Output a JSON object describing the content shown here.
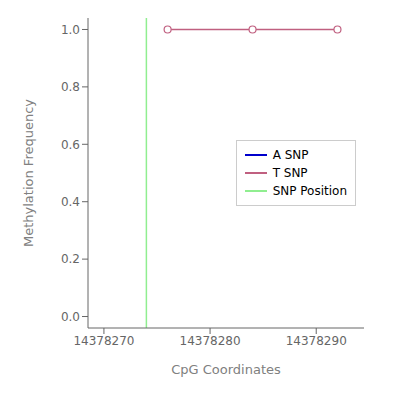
{
  "chart_data": {
    "type": "line",
    "xlabel": "CpG Coordinates",
    "ylabel": "Methylation Frequency",
    "xlim": [
      14378268.5,
      14378294.5
    ],
    "ylim": [
      -0.04,
      1.04
    ],
    "xticks": [
      14378270,
      14378280,
      14378290
    ],
    "yticks": [
      {
        "value": 0.0,
        "label": "0.0"
      },
      0.2,
      0.4,
      0.6,
      0.8,
      {
        "value": 1.0,
        "label": "1.0"
      }
    ],
    "grid": false,
    "legend": "right",
    "series": [
      {
        "name": "A SNP",
        "color": "#0000cc",
        "x": [],
        "values": [],
        "line_style": "solid"
      },
      {
        "name": "T SNP",
        "color": "#c06080",
        "x": [
          14378276,
          14378284,
          14378292
        ],
        "values": [
          1.0,
          1.0,
          1.0
        ],
        "marker": "o",
        "line_style": "solid"
      },
      {
        "name": "SNP Position",
        "type": "vline",
        "color": "#90ee90",
        "x": 14378274,
        "line_style": "solid"
      }
    ]
  }
}
